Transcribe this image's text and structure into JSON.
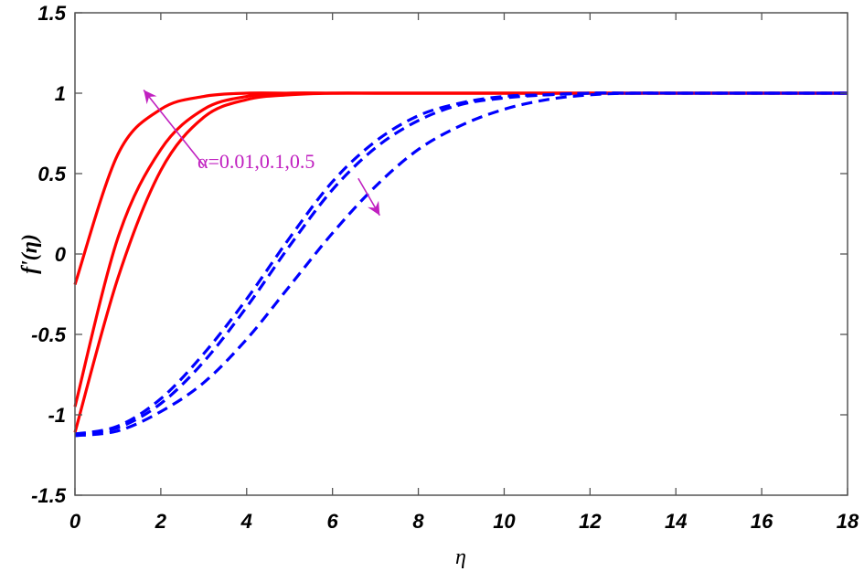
{
  "chart_data": {
    "type": "line",
    "title": "",
    "xlabel": "η",
    "ylabel": "f'(η)",
    "xlim": [
      0,
      18
    ],
    "ylim": [
      -1.5,
      1.5
    ],
    "grid": false,
    "legend": null,
    "xticks": [
      "0",
      "2",
      "4",
      "6",
      "8",
      "10",
      "12",
      "14",
      "16",
      "18"
    ],
    "yticks": [
      "1.5",
      "1",
      "0.5",
      "0",
      "-0.5",
      "-1",
      "-1.5"
    ],
    "annotation": {
      "text": "α=0.01,0.1,0.5",
      "color": "#c020c0",
      "arrows": [
        {
          "from": [
            3.0,
            0.55
          ],
          "to": [
            1.6,
            1.02
          ]
        },
        {
          "from": [
            6.6,
            0.47
          ],
          "to": [
            7.1,
            0.24
          ]
        }
      ]
    },
    "x": [
      0,
      1,
      2,
      3,
      4,
      5,
      6,
      7,
      8,
      9,
      10,
      11,
      12,
      13,
      14,
      15,
      16,
      17,
      18
    ],
    "series": [
      {
        "name": "α=0.01 (solid)",
        "style": "solid",
        "color": "#ff0000",
        "values": [
          -0.19,
          0.62,
          0.9,
          0.98,
          1.0,
          1.0,
          1.0,
          1.0,
          1.0,
          1.0,
          1.0,
          1.0,
          1.0,
          1.0,
          1.0,
          1.0,
          1.0,
          1.0,
          1.0
        ]
      },
      {
        "name": "α=0.1 (solid)",
        "style": "solid",
        "color": "#ff0000",
        "values": [
          -0.95,
          0.1,
          0.65,
          0.9,
          0.98,
          1.0,
          1.0,
          1.0,
          1.0,
          1.0,
          1.0,
          1.0,
          1.0,
          1.0,
          1.0,
          1.0,
          1.0,
          1.0,
          1.0
        ]
      },
      {
        "name": "α=0.5 (solid)",
        "style": "solid",
        "color": "#ff0000",
        "values": [
          -1.11,
          -0.15,
          0.52,
          0.85,
          0.96,
          0.99,
          1.0,
          1.0,
          1.0,
          1.0,
          1.0,
          1.0,
          1.0,
          1.0,
          1.0,
          1.0,
          1.0,
          1.0,
          1.0
        ]
      },
      {
        "name": "α=0.01 (dashed)",
        "style": "dashed",
        "color": "#0000ff",
        "values": [
          -1.12,
          -1.07,
          -0.9,
          -0.62,
          -0.28,
          0.1,
          0.45,
          0.7,
          0.86,
          0.94,
          0.98,
          0.99,
          1.0,
          1.0,
          1.0,
          1.0,
          1.0,
          1.0,
          1.0
        ]
      },
      {
        "name": "α=0.1 (dashed)",
        "style": "dashed",
        "color": "#0000ff",
        "values": [
          -1.12,
          -1.08,
          -0.93,
          -0.67,
          -0.33,
          0.05,
          0.4,
          0.66,
          0.83,
          0.93,
          0.97,
          0.99,
          1.0,
          1.0,
          1.0,
          1.0,
          1.0,
          1.0,
          1.0
        ]
      },
      {
        "name": "α=0.5 (dashed)",
        "style": "dashed",
        "color": "#0000ff",
        "values": [
          -1.13,
          -1.1,
          -0.98,
          -0.8,
          -0.53,
          -0.2,
          0.13,
          0.42,
          0.65,
          0.8,
          0.9,
          0.96,
          0.99,
          1.0,
          1.0,
          1.0,
          1.0,
          1.0,
          1.0
        ]
      }
    ]
  }
}
